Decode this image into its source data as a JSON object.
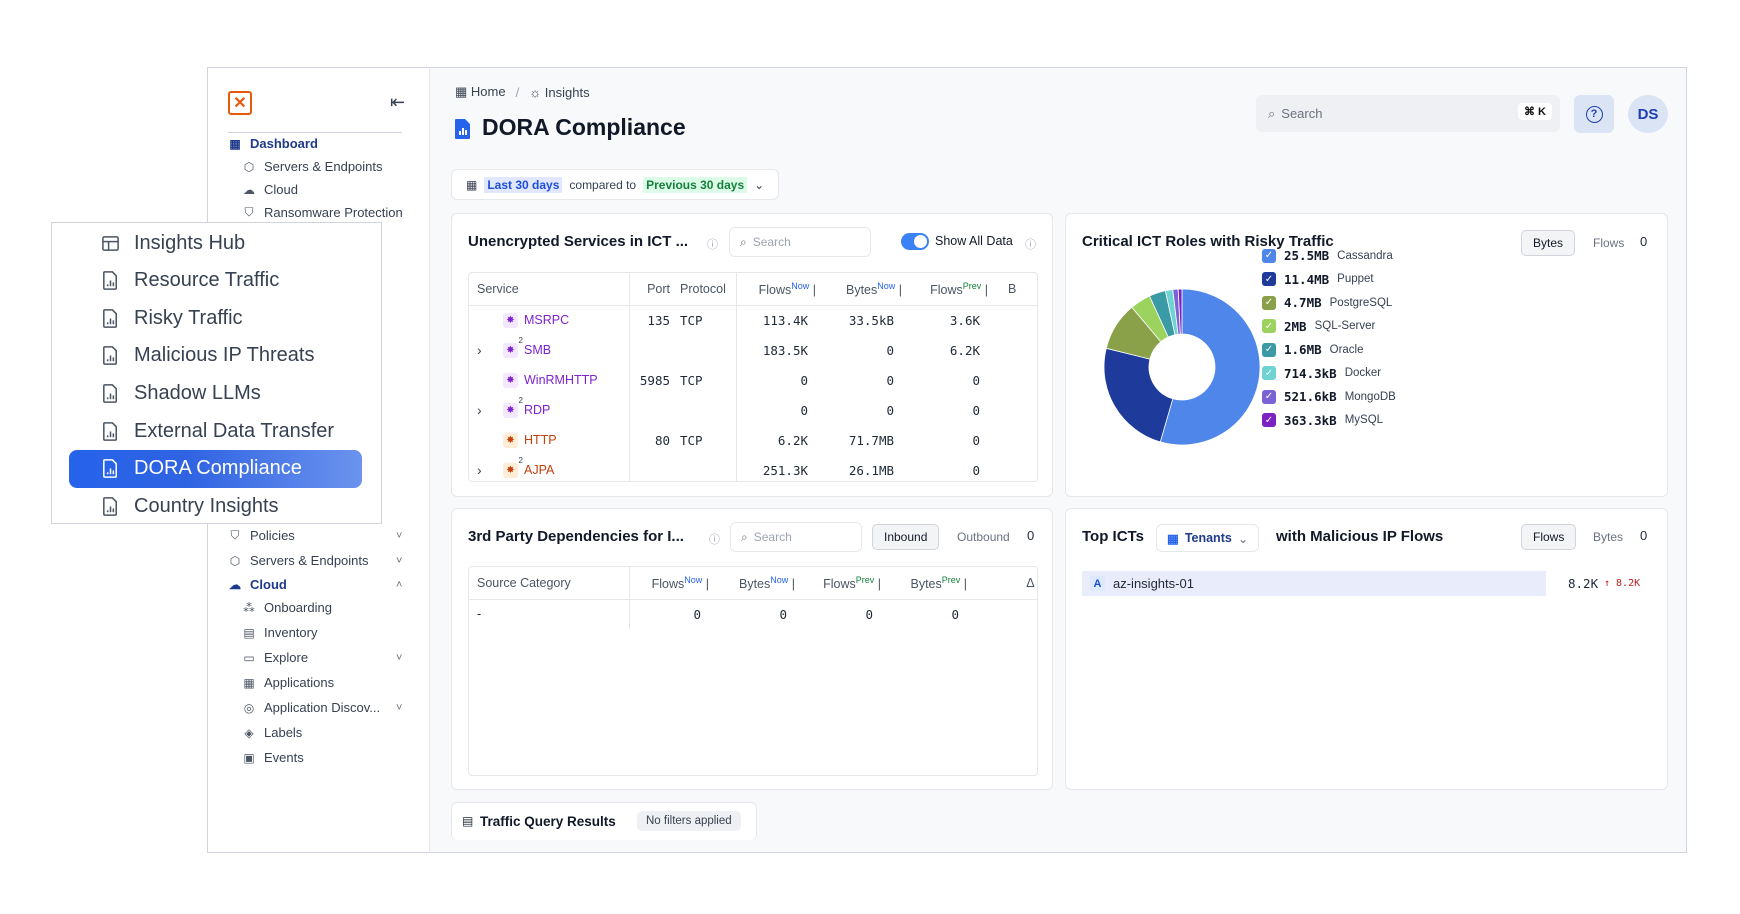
{
  "sidebar": {
    "top_items": [
      {
        "label": "Dashboard",
        "icon": "grid-icon",
        "active": true
      },
      {
        "label": "Servers & Endpoints",
        "icon": "cube-icon"
      },
      {
        "label": "Cloud",
        "icon": "cloud-icon"
      },
      {
        "label": "Ransomware Protection",
        "icon": "shield-check-icon"
      }
    ],
    "bottom_items": [
      {
        "label": "Policies",
        "icon": "shield-icon",
        "chevron": "˅"
      },
      {
        "label": "Servers & Endpoints",
        "icon": "cube-icon",
        "chevron": "˅"
      },
      {
        "label": "Cloud",
        "icon": "cloud-icon",
        "chevron": "˄",
        "active": true
      },
      {
        "label": "Onboarding",
        "icon": "nodes-icon"
      },
      {
        "label": "Inventory",
        "icon": "list-icon"
      },
      {
        "label": "Explore",
        "icon": "window-icon",
        "chevron": "˅"
      },
      {
        "label": "Applications",
        "icon": "apps-icon"
      },
      {
        "label": "Application Discov...",
        "icon": "radar-icon",
        "chevron": "˅"
      },
      {
        "label": "Labels",
        "icon": "tag-icon"
      },
      {
        "label": "Events",
        "icon": "calendar-icon"
      }
    ]
  },
  "overlay_menu": {
    "items": [
      {
        "label": "Insights Hub",
        "icon": "layout-icon"
      },
      {
        "label": "Resource Traffic",
        "icon": "report-icon"
      },
      {
        "label": "Risky Traffic",
        "icon": "report-icon"
      },
      {
        "label": "Malicious IP Threats",
        "icon": "report-icon"
      },
      {
        "label": "Shadow LLMs",
        "icon": "report-icon"
      },
      {
        "label": "External Data Transfer",
        "icon": "report-icon"
      },
      {
        "label": "DORA Compliance",
        "icon": "report-icon",
        "active": true
      },
      {
        "label": "Country Insights",
        "icon": "report-icon"
      }
    ]
  },
  "header": {
    "breadcrumb": {
      "home": "Home",
      "separator": "/",
      "current": "Insights"
    },
    "title": "DORA Compliance",
    "search_placeholder": "Search",
    "search_shortcut": "⌘ K",
    "help_icon": "?",
    "avatar_initials": "DS"
  },
  "date_filter": {
    "range": "Last 30 days",
    "compared_text": "compared to",
    "compare_range": "Previous 30 days"
  },
  "unencrypted": {
    "title": "Unencrypted Services in ICT ...",
    "search_placeholder": "Search",
    "toggle_label": "Show All Data",
    "columns": {
      "service": "Service",
      "port": "Port",
      "protocol": "Protocol",
      "flows": "Flows",
      "bytes": "Bytes",
      "flows_prev": "Flows",
      "extra": "B",
      "now": "Now",
      "prev": "Prev"
    },
    "rows": [
      {
        "service": "MSRPC",
        "port": "135",
        "protocol": "TCP",
        "flows_now": "113.4K",
        "bytes_now": "33.5kB",
        "flows_prev": "3.6K",
        "expand": "",
        "badge": "",
        "color": "#7e22ce",
        "bg": "#f3e8ff"
      },
      {
        "service": "SMB",
        "port": "",
        "protocol": "",
        "flows_now": "183.5K",
        "bytes_now": "0",
        "flows_prev": "6.2K",
        "expand": "›",
        "badge": "2",
        "color": "#7e22ce",
        "bg": "#f3e8ff"
      },
      {
        "service": "WinRMHTTP",
        "port": "5985",
        "protocol": "TCP",
        "flows_now": "0",
        "bytes_now": "0",
        "flows_prev": "0",
        "expand": "",
        "badge": "",
        "color": "#7e22ce",
        "bg": "#f3e8ff"
      },
      {
        "service": "RDP",
        "port": "",
        "protocol": "",
        "flows_now": "0",
        "bytes_now": "0",
        "flows_prev": "0",
        "expand": "›",
        "badge": "2",
        "color": "#7e22ce",
        "bg": "#f3e8ff"
      },
      {
        "service": "HTTP",
        "port": "80",
        "protocol": "TCP",
        "flows_now": "6.2K",
        "bytes_now": "71.7MB",
        "flows_prev": "0",
        "expand": "",
        "badge": "",
        "color": "#c2410c",
        "bg": "#ffedd5"
      },
      {
        "service": "AJPA",
        "port": "",
        "protocol": "",
        "flows_now": "251.3K",
        "bytes_now": "26.1MB",
        "flows_prev": "0",
        "expand": "›",
        "badge": "2",
        "color": "#c2410c",
        "bg": "#ffedd5"
      }
    ]
  },
  "critical_ict": {
    "title": "Critical ICT Roles with Risky Traffic",
    "seg_active": "Bytes",
    "seg_inactive": "Flows",
    "overflow": "0",
    "chart_data": {
      "type": "pie",
      "donut": true,
      "categories": [
        "Cassandra",
        "Puppet",
        "PostgreSQL",
        "SQL-Server",
        "Oracle",
        "Docker",
        "MongoDB",
        "MySQL"
      ],
      "values": [
        25.5,
        11.4,
        4.7,
        2.0,
        1.6,
        0.714,
        0.5216,
        0.3633
      ],
      "value_labels": [
        "25.5MB",
        "11.4MB",
        "4.7MB",
        "2MB",
        "1.6MB",
        "714.3kB",
        "521.6kB",
        "363.3kB"
      ],
      "colors": [
        "#4f86ea",
        "#1e3a9a",
        "#8aa14a",
        "#9bd35e",
        "#3a9aa6",
        "#6fd3d3",
        "#7b63d6",
        "#7c22c4"
      ],
      "legend": "right"
    }
  },
  "third_party": {
    "title": "3rd Party Dependencies for I...",
    "search_placeholder": "Search",
    "seg_active": "Inbound",
    "seg_inactive": "Outbound",
    "overflow": "0",
    "columns": {
      "category": "Source Category",
      "flows": "Flows",
      "bytes": "Bytes",
      "flows_prev": "Flows",
      "bytes_prev": "Bytes",
      "delta": "Δ F",
      "now": "Now",
      "prev": "Prev"
    },
    "rows": [
      {
        "category": "-",
        "flows_now": "0",
        "bytes_now": "0",
        "flows_prev": "0",
        "bytes_prev": "0"
      }
    ]
  },
  "top_icts": {
    "title_prefix": "Top ICTs",
    "dropdown": "Tenants",
    "title_suffix": "with Malicious IP Flows",
    "seg_active": "Flows",
    "seg_inactive": "Bytes",
    "overflow": "0",
    "rows": [
      {
        "name": "az-insights-01",
        "value": "8.2K",
        "delta": "↑ 8.2K"
      }
    ]
  },
  "query_results": {
    "title": "Traffic Query Results",
    "filter": "No filters applied"
  }
}
